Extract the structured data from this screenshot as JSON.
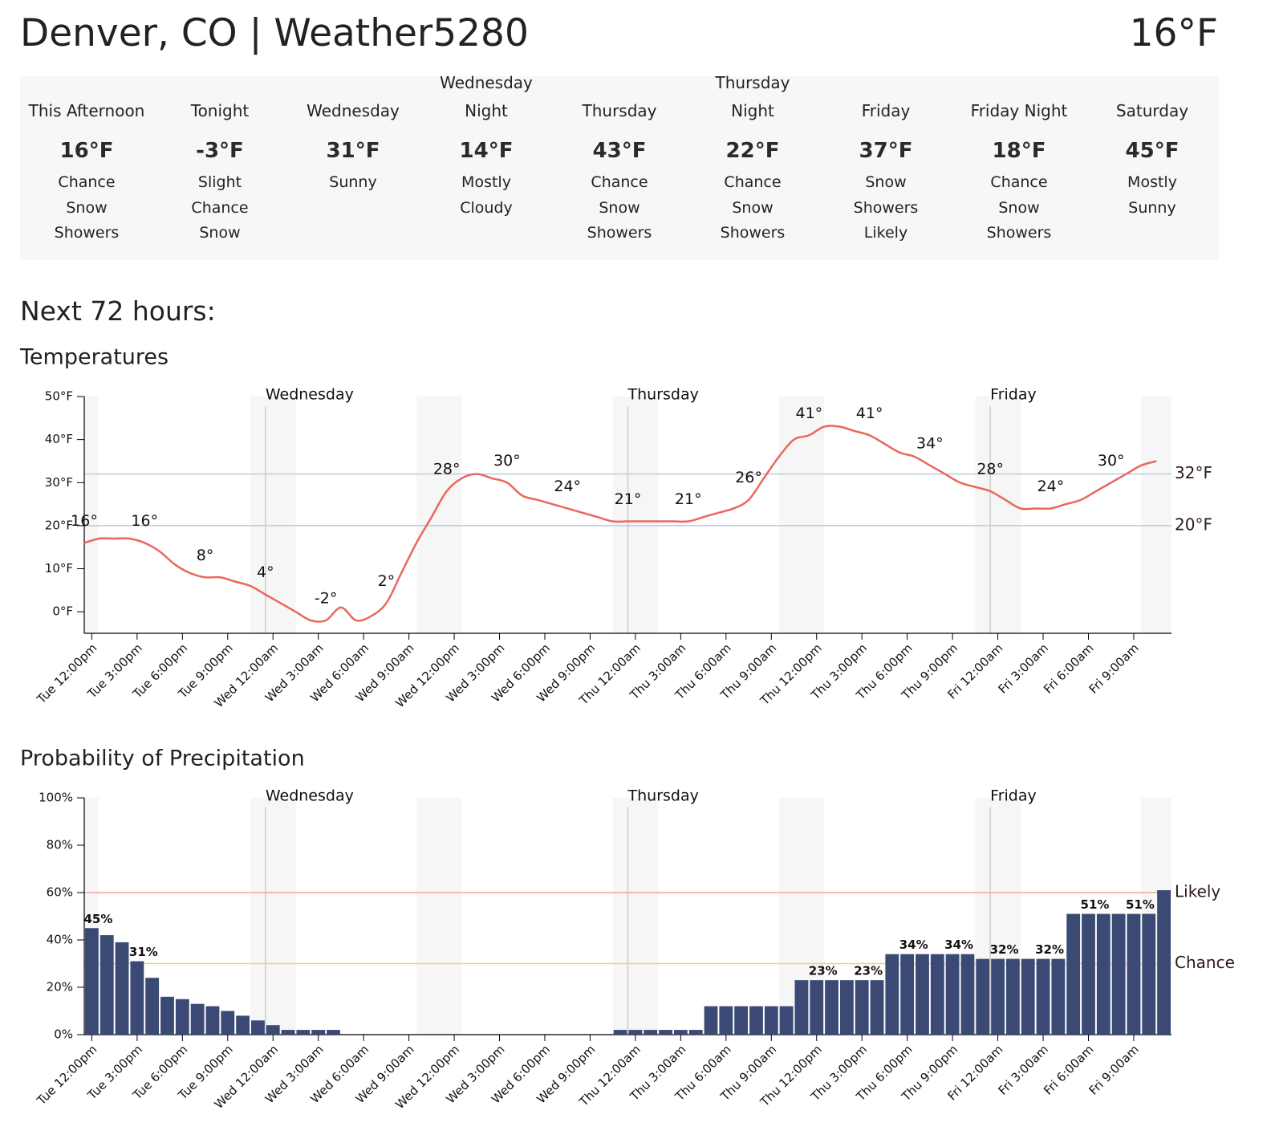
{
  "header": {
    "title": "Denver, CO | Weather5280",
    "current_temp": "16°F"
  },
  "forecast": [
    {
      "name": "This Afternoon",
      "temp": "16°F",
      "description": "Chance Snow Showers"
    },
    {
      "name": "Tonight",
      "temp": "-3°F",
      "description": "Slight Chance Snow"
    },
    {
      "name": "Wednesday",
      "temp": "31°F",
      "description": "Sunny"
    },
    {
      "name": "Wednesday Night",
      "temp": "14°F",
      "description": "Mostly Cloudy"
    },
    {
      "name": "Thursday",
      "temp": "43°F",
      "description": "Chance Snow Showers"
    },
    {
      "name": "Thursday Night",
      "temp": "22°F",
      "description": "Chance Snow Showers"
    },
    {
      "name": "Friday",
      "temp": "37°F",
      "description": "Snow Showers Likely"
    },
    {
      "name": "Friday Night",
      "temp": "18°F",
      "description": "Chance Snow Showers"
    },
    {
      "name": "Saturday",
      "temp": "45°F",
      "description": "Mostly Sunny"
    }
  ],
  "section_title": "Next 72 hours:",
  "chart_data": [
    {
      "type": "line",
      "title": "Temperatures",
      "color": "#e8685e",
      "categories": [
        "Tue 12:00pm",
        null,
        null,
        "Tue 3:00pm",
        null,
        null,
        "Tue 6:00pm",
        null,
        null,
        "Tue 9:00pm",
        null,
        null,
        "Wed 12:00am",
        null,
        null,
        "Wed 3:00am",
        null,
        null,
        "Wed 6:00am",
        null,
        null,
        "Wed 9:00am",
        null,
        null,
        "Wed 12:00pm",
        null,
        null,
        "Wed 3:00pm",
        null,
        null,
        "Wed 6:00pm",
        null,
        null,
        "Wed 9:00pm",
        null,
        null,
        "Thu 12:00am",
        null,
        null,
        "Thu 3:00am",
        null,
        null,
        "Thu 6:00am",
        null,
        null,
        "Thu 9:00am",
        null,
        null,
        "Thu 12:00pm",
        null,
        null,
        "Thu 3:00pm",
        null,
        null,
        "Thu 6:00pm",
        null,
        null,
        "Thu 9:00pm",
        null,
        null,
        "Fri 12:00am",
        null,
        null,
        "Fri 3:00am",
        null,
        null,
        "Fri 6:00am",
        null,
        null,
        "Fri 9:00am",
        null,
        null
      ],
      "values": [
        16,
        17,
        17,
        17,
        16,
        14,
        11,
        9,
        8,
        8,
        7,
        6,
        4,
        2,
        0,
        -2,
        -2,
        1,
        -2,
        -1,
        2,
        9,
        16,
        22,
        28,
        31,
        32,
        31,
        30,
        27,
        26,
        25,
        24,
        23,
        22,
        21,
        21,
        21,
        21,
        21,
        21,
        22,
        23,
        24,
        26,
        31,
        36,
        40,
        41,
        43,
        43,
        42,
        41,
        39,
        37,
        36,
        34,
        32,
        30,
        29,
        28,
        26,
        24,
        24,
        24,
        25,
        26,
        28,
        30,
        32,
        34,
        35
      ],
      "value_labels": [
        "16°",
        null,
        null,
        null,
        "16°",
        null,
        null,
        null,
        "8°",
        null,
        null,
        null,
        "4°",
        null,
        null,
        null,
        "-2°",
        null,
        null,
        null,
        "2°",
        null,
        null,
        null,
        "28°",
        null,
        null,
        null,
        "30°",
        null,
        null,
        null,
        "24°",
        null,
        null,
        null,
        "21°",
        null,
        null,
        null,
        "21°",
        null,
        null,
        null,
        "26°",
        null,
        null,
        null,
        "41°",
        null,
        null,
        null,
        "41°",
        null,
        null,
        null,
        "34°",
        null,
        null,
        null,
        "28°",
        null,
        null,
        null,
        "24°",
        null,
        null,
        null,
        "30°",
        null,
        null,
        null
      ],
      "ylim": [
        -5,
        50
      ],
      "yticks": [
        {
          "value": 0,
          "label": "0°F"
        },
        {
          "value": 10,
          "label": "10°F"
        },
        {
          "value": 20,
          "label": "20°F"
        },
        {
          "value": 30,
          "label": "30°F"
        },
        {
          "value": 40,
          "label": "40°F"
        },
        {
          "value": 50,
          "label": "50°F"
        }
      ],
      "reference_lines": [
        {
          "value": 32,
          "label": "32°F",
          "color": "#b9cde0"
        },
        {
          "value": 20,
          "label": "20°F",
          "color": "#b9cde0"
        }
      ],
      "day_labels": [
        "Wednesday",
        "Thursday",
        "Friday"
      ]
    },
    {
      "type": "bar",
      "title": "Probability of Precipitation",
      "color": "#3b4a74",
      "categories": [
        "Tue 12:00pm",
        null,
        null,
        "Tue 3:00pm",
        null,
        null,
        "Tue 6:00pm",
        null,
        null,
        "Tue 9:00pm",
        null,
        null,
        "Wed 12:00am",
        null,
        null,
        "Wed 3:00am",
        null,
        null,
        "Wed 6:00am",
        null,
        null,
        "Wed 9:00am",
        null,
        null,
        "Wed 12:00pm",
        null,
        null,
        "Wed 3:00pm",
        null,
        null,
        "Wed 6:00pm",
        null,
        null,
        "Wed 9:00pm",
        null,
        null,
        "Thu 12:00am",
        null,
        null,
        "Thu 3:00am",
        null,
        null,
        "Thu 6:00am",
        null,
        null,
        "Thu 9:00am",
        null,
        null,
        "Thu 12:00pm",
        null,
        null,
        "Thu 3:00pm",
        null,
        null,
        "Thu 6:00pm",
        null,
        null,
        "Thu 9:00pm",
        null,
        null,
        "Fri 12:00am",
        null,
        null,
        "Fri 3:00am",
        null,
        null,
        "Fri 6:00am",
        null,
        null,
        "Fri 9:00am",
        null,
        null
      ],
      "values": [
        45,
        42,
        39,
        31,
        24,
        16,
        15,
        13,
        12,
        10,
        8,
        6,
        4,
        2,
        2,
        2,
        2,
        0,
        0,
        0,
        0,
        0,
        0,
        0,
        0,
        0,
        0,
        0,
        0,
        0,
        0,
        0,
        0,
        0,
        0,
        2,
        2,
        2,
        2,
        2,
        2,
        12,
        12,
        12,
        12,
        12,
        12,
        23,
        23,
        23,
        23,
        23,
        23,
        34,
        34,
        34,
        34,
        34,
        34,
        32,
        32,
        32,
        32,
        32,
        32,
        51,
        51,
        51,
        51,
        51,
        51,
        61
      ],
      "value_labels": [
        "45%",
        null,
        null,
        "31%",
        null,
        null,
        null,
        null,
        null,
        null,
        null,
        null,
        null,
        null,
        null,
        null,
        null,
        null,
        null,
        null,
        null,
        null,
        null,
        null,
        null,
        null,
        null,
        null,
        null,
        null,
        null,
        null,
        null,
        null,
        null,
        null,
        null,
        null,
        null,
        null,
        null,
        null,
        null,
        null,
        null,
        null,
        null,
        null,
        "23%",
        null,
        null,
        "23%",
        null,
        null,
        "34%",
        null,
        null,
        "34%",
        null,
        null,
        "32%",
        null,
        null,
        "32%",
        null,
        null,
        "51%",
        null,
        null,
        "51%",
        null,
        null
      ],
      "ylim": [
        0,
        100
      ],
      "yticks": [
        {
          "value": 0,
          "label": "0%"
        },
        {
          "value": 20,
          "label": "20%"
        },
        {
          "value": 40,
          "label": "40%"
        },
        {
          "value": 60,
          "label": "60%"
        },
        {
          "value": 80,
          "label": "80%"
        },
        {
          "value": 100,
          "label": "100%"
        }
      ],
      "reference_lines": [
        {
          "value": 60,
          "label": "Likely",
          "color": "#f2a3a3"
        },
        {
          "value": 30,
          "label": "Chance",
          "color": "#f3c98c"
        }
      ],
      "day_labels": [
        "Wednesday",
        "Thursday",
        "Friday"
      ]
    }
  ]
}
